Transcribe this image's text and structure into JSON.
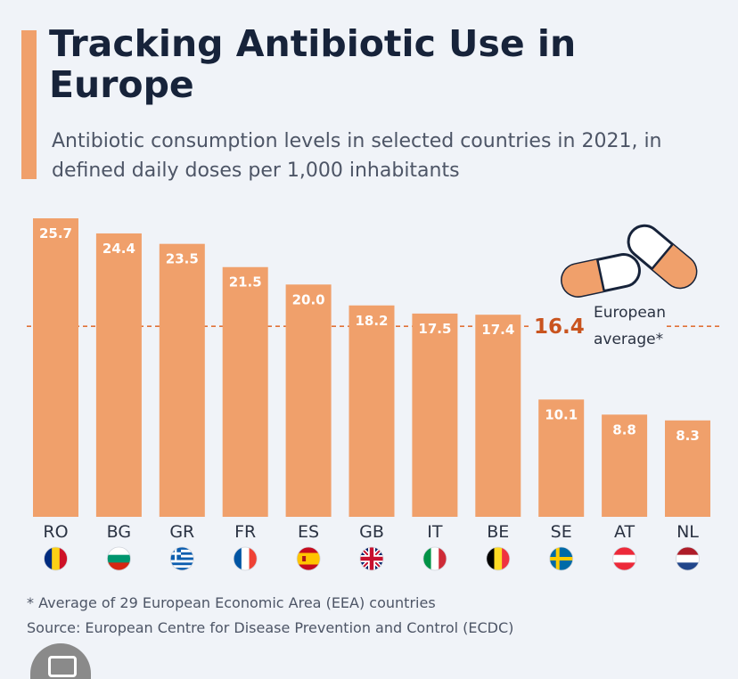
{
  "header": {
    "title": "Tracking Antibiotic Use in Europe",
    "subtitle": "Antibiotic consumption levels in selected countries in 2021, in defined daily doses per 1,000 inhabitants"
  },
  "footer": {
    "footnote": "* Average of 29 European Economic Area (EEA) countries",
    "source": "Source: European Centre for Disease Prevention and Control (ECDC)"
  },
  "colors": {
    "bar": "#f0a06b",
    "reference_line": "#e07238",
    "reference_value": "#c9541f",
    "title": "#17233a",
    "text": "#4d5566",
    "background": "#f0f3f8"
  },
  "chart_data": {
    "type": "bar",
    "title": "Tracking Antibiotic Use in Europe",
    "subtitle": "Antibiotic consumption levels in selected countries in 2021, in defined daily doses per 1,000 inhabitants",
    "categories": [
      "RO",
      "BG",
      "GR",
      "FR",
      "ES",
      "GB",
      "IT",
      "BE",
      "SE",
      "AT",
      "NL"
    ],
    "values": [
      25.7,
      24.4,
      23.5,
      21.5,
      20.0,
      18.2,
      17.5,
      17.4,
      10.1,
      8.8,
      8.3
    ],
    "value_labels": [
      "25.7",
      "24.4",
      "23.5",
      "21.5",
      "20.0",
      "18.2",
      "17.5",
      "17.4",
      "10.1",
      "8.8",
      "8.3"
    ],
    "flag_icons": [
      "flag-romania-icon",
      "flag-bulgaria-icon",
      "flag-greece-icon",
      "flag-france-icon",
      "flag-spain-icon",
      "flag-uk-icon",
      "flag-italy-icon",
      "flag-belgium-icon",
      "flag-sweden-icon",
      "flag-austria-icon",
      "flag-netherlands-icon"
    ],
    "reference_line": {
      "value": 16.4,
      "value_label": "16.4",
      "label_line1": "European",
      "label_line2": "average*"
    },
    "decorative_icon": "pills-icon",
    "ylim": [
      0,
      25.7
    ],
    "xlabel": "",
    "ylabel": "",
    "grid": false,
    "legend": "none"
  }
}
